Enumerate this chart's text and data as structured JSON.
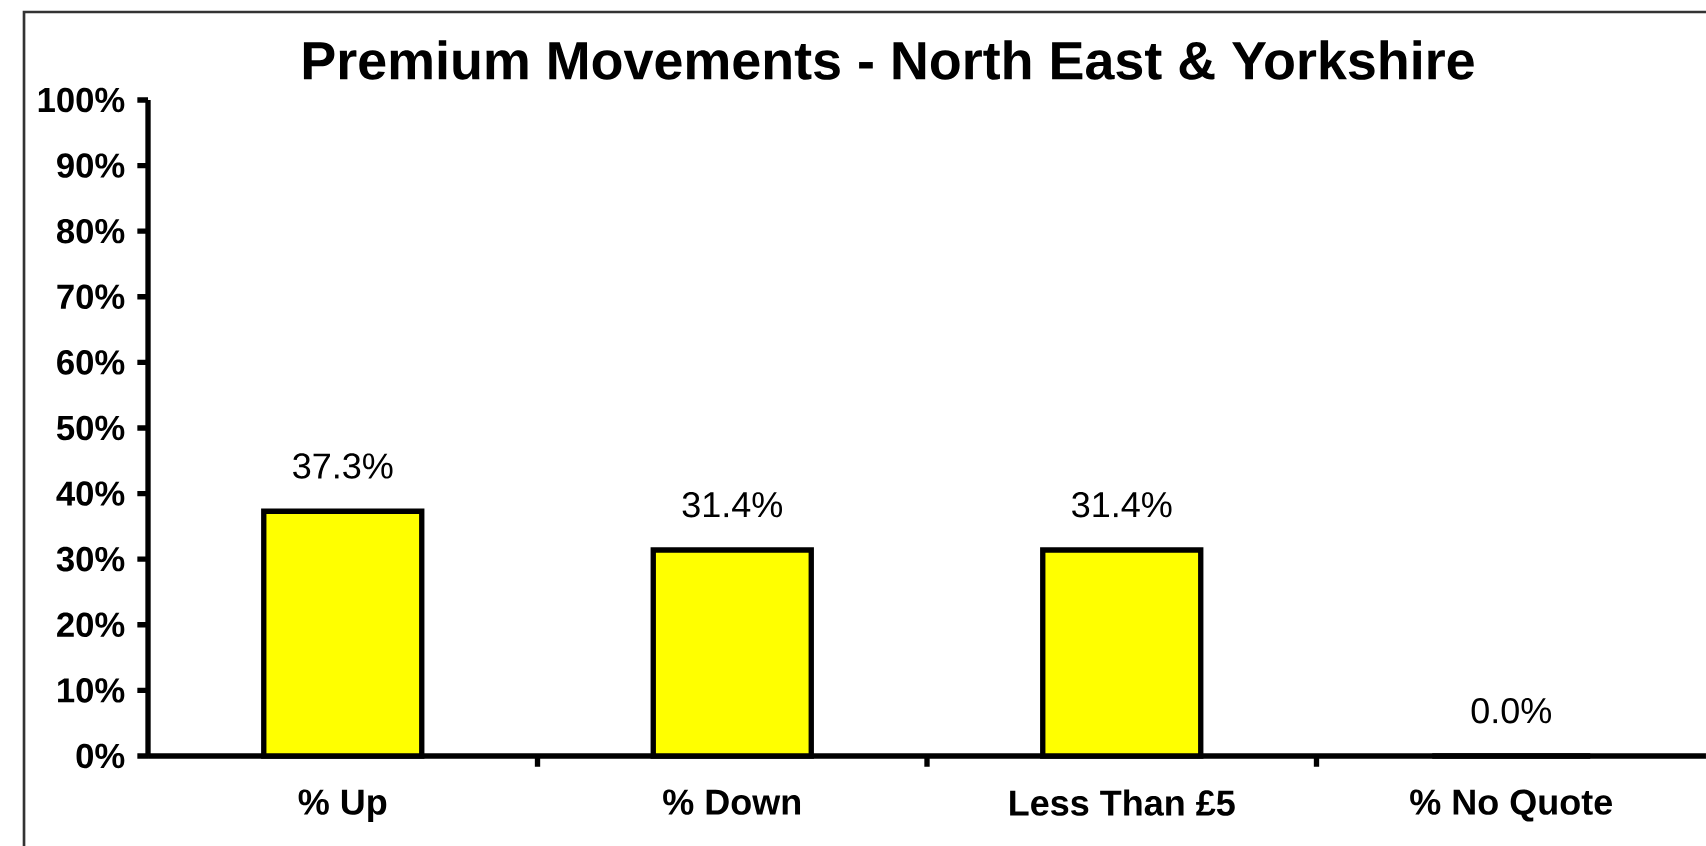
{
  "chart_data": {
    "type": "bar",
    "title": "Premium Movements - North East & Yorkshire",
    "categories": [
      "% Up",
      "% Down",
      "Less Than £5",
      "% No Quote"
    ],
    "values": [
      37.3,
      31.4,
      31.4,
      0.0
    ],
    "color": "#ffff00",
    "value_labels": [
      "37.3%",
      "31.4%",
      "31.4%",
      "0.0%"
    ],
    "ylim": [
      0,
      100
    ],
    "yticks": [
      {
        "value": 0,
        "label": "0%"
      },
      {
        "value": 10,
        "label": "10%"
      },
      {
        "value": 20,
        "label": "20%"
      },
      {
        "value": 30,
        "label": "30%"
      },
      {
        "value": 40,
        "label": "40%"
      },
      {
        "value": 50,
        "label": "50%"
      },
      {
        "value": 60,
        "label": "60%"
      },
      {
        "value": 70,
        "label": "70%"
      },
      {
        "value": 80,
        "label": "80%"
      },
      {
        "value": 90,
        "label": "90%"
      },
      {
        "value": 100,
        "label": "100%"
      }
    ]
  }
}
